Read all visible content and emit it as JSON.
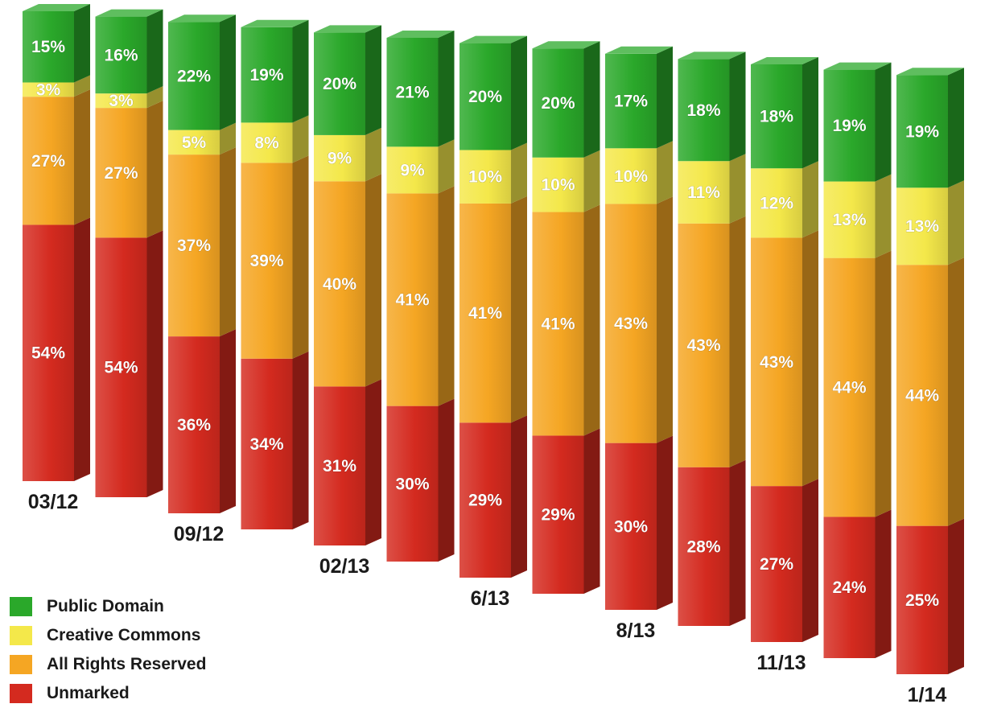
{
  "chart_data": {
    "type": "bar",
    "stacked": true,
    "percent": true,
    "categories": [
      "03/12",
      "",
      "09/12",
      "",
      "02/13",
      "",
      "6/13",
      "",
      "8/13",
      "",
      "11/13",
      "",
      "1/14"
    ],
    "series": [
      {
        "name": "Unmarked",
        "color": "#d42a1f",
        "values": [
          54,
          54,
          36,
          34,
          31,
          30,
          29,
          29,
          30,
          28,
          27,
          24,
          25
        ]
      },
      {
        "name": "All Rights Reserved",
        "color": "#f5a623",
        "values": [
          27,
          27,
          37,
          39,
          40,
          41,
          41,
          41,
          43,
          43,
          43,
          44,
          44
        ]
      },
      {
        "name": "Creative Commons",
        "color": "#f4e84a",
        "values": [
          3,
          3,
          5,
          8,
          9,
          9,
          10,
          10,
          10,
          11,
          12,
          13,
          13
        ]
      },
      {
        "name": "Public Domain",
        "color": "#2aa82a",
        "values": [
          15,
          16,
          22,
          19,
          20,
          21,
          20,
          20,
          17,
          18,
          18,
          19,
          19
        ]
      }
    ],
    "legend_position": "bottom-left",
    "grid": false,
    "title": "",
    "xlabel": "",
    "ylabel": ""
  },
  "legend": {
    "items": [
      {
        "label": "Public Domain",
        "color": "#2aa82a"
      },
      {
        "label": "Creative Commons",
        "color": "#f4e84a"
      },
      {
        "label": "All Rights Reserved",
        "color": "#f5a623"
      },
      {
        "label": "Unmarked",
        "color": "#d42a1f"
      }
    ]
  }
}
